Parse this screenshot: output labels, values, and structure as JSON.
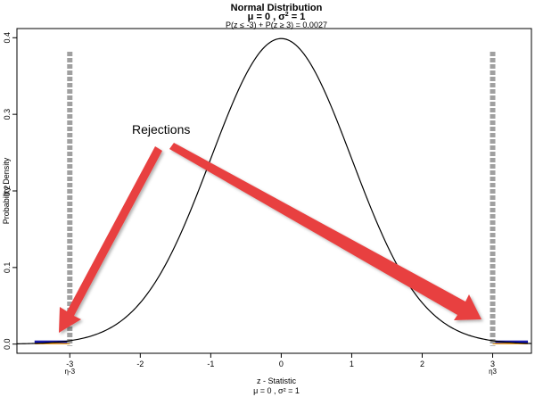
{
  "chart_data": {
    "type": "line",
    "title": "Normal Distribution",
    "subtitle_prefix": "μ = 0 , σ",
    "subtitle_sup": "2",
    "subtitle_suffix": " = 1",
    "probability_text": "P(z ≤ -3) + P(z ≥ 3) = 0.0027",
    "xlabel": "z - Statistic",
    "xlabel_params": "μ = 0 , σ² = 1",
    "ylabel": "Probability Density",
    "xlim": [
      -3.75,
      3.55
    ],
    "ylim": [
      -0.012,
      0.412
    ],
    "x_ticks": [
      {
        "value": -3,
        "label": "-3",
        "sub": "η-3"
      },
      {
        "value": -2,
        "label": "-2",
        "sub": ""
      },
      {
        "value": -1,
        "label": "-1",
        "sub": ""
      },
      {
        "value": 0,
        "label": "0",
        "sub": ""
      },
      {
        "value": 1,
        "label": "1",
        "sub": ""
      },
      {
        "value": 2,
        "label": "2",
        "sub": ""
      },
      {
        "value": 3,
        "label": "3",
        "sub": "η3"
      }
    ],
    "y_ticks": [
      {
        "value": 0.0,
        "label": "0.0"
      },
      {
        "value": 0.1,
        "label": "0.1"
      },
      {
        "value": 0.2,
        "label": "0.2"
      },
      {
        "value": 0.3,
        "label": "0.3"
      },
      {
        "value": 0.4,
        "label": "0.4"
      }
    ],
    "critical_values": [
      -3,
      3
    ],
    "curve": {
      "mean": 0,
      "sd": 1,
      "x_range": [
        -3.75,
        3.55
      ],
      "color": "#000000"
    },
    "rejection_regions": [
      {
        "from": -3.5,
        "to": -3
      },
      {
        "from": 3,
        "to": 3.5
      }
    ],
    "annotation": {
      "text": "Rejections",
      "arrow_count": 2
    },
    "colors": {
      "curve": "#000000",
      "critical_line": "#a0a0a0",
      "arrow": "#e84040",
      "region_fill": "#1a1aa8",
      "region_edge": "#f0a020"
    }
  }
}
